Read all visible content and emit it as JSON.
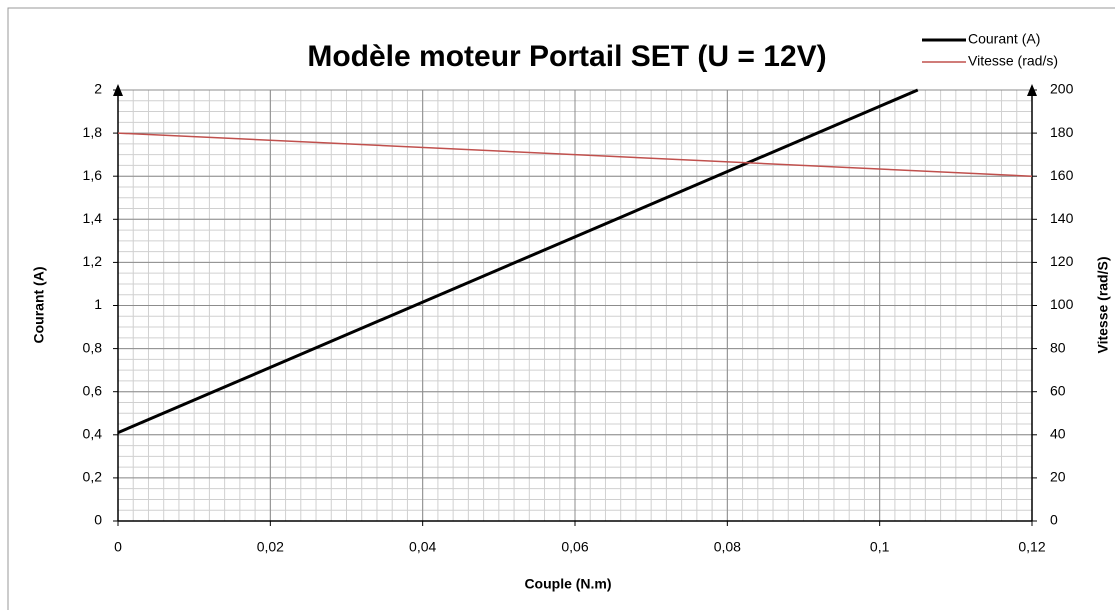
{
  "chart_data": {
    "type": "line",
    "title": "Modèle moteur Portail SET (U = 12V)",
    "xlabel": "Couple (N.m)",
    "ylabel": "Courant (A)",
    "y2label": "Vitesse (rad/S)",
    "xlim": [
      0,
      0.12
    ],
    "xticks": [
      0,
      {
        "value": 0.02,
        "label": "0,02"
      },
      {
        "value": 0.04,
        "label": "0,04"
      },
      {
        "value": 0.06,
        "label": "0,06"
      },
      {
        "value": 0.08,
        "label": "0,08"
      },
      {
        "value": 0.1,
        "label": "0,1"
      },
      {
        "value": 0.12,
        "label": "0,12"
      }
    ],
    "ylim": [
      0,
      2
    ],
    "yticks": [
      0,
      {
        "value": 0.2,
        "label": "0,2"
      },
      {
        "value": 0.4,
        "label": "0,4"
      },
      {
        "value": 0.6,
        "label": "0,6"
      },
      {
        "value": 0.8,
        "label": "0,8"
      },
      1,
      {
        "value": 1.2,
        "label": "1,2"
      },
      {
        "value": 1.4,
        "label": "1,4"
      },
      {
        "value": 1.6,
        "label": "1,6"
      },
      {
        "value": 1.8,
        "label": "1,8"
      },
      2
    ],
    "y2lim": [
      0,
      200
    ],
    "y2ticks": [
      0,
      20,
      40,
      60,
      80,
      100,
      120,
      140,
      160,
      180,
      200
    ],
    "grid": true,
    "legend": "top-right",
    "series": [
      {
        "name": "Courant (A)",
        "color": "#000000",
        "x": [
          0,
          0.105
        ],
        "values": [
          0.41,
          2.0
        ]
      },
      {
        "name": "Vitesse (rad/s)",
        "color": "#c0504d",
        "axis": "y2",
        "x": [
          0,
          0.12
        ],
        "values": [
          180,
          160
        ]
      }
    ]
  }
}
